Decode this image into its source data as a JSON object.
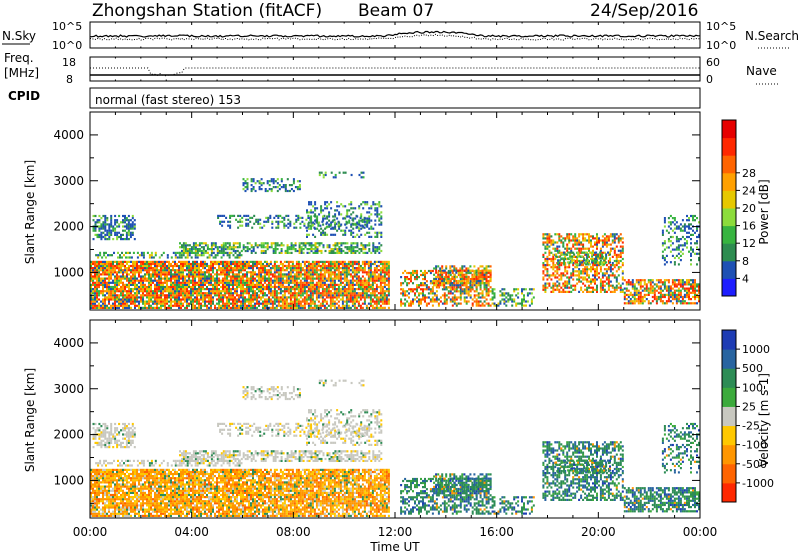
{
  "header": {
    "station": "Zhongshan Station (fitACF)",
    "beam": "Beam 07",
    "date": "24/Sep/2016"
  },
  "top_panels": {
    "noise": {
      "left_label": "N.Sky",
      "right_label": "N.Search",
      "left_ticks": [
        "10^5",
        "10^0"
      ],
      "right_ticks": [
        "10^5",
        "10^0"
      ]
    },
    "freq": {
      "left_label_1": "Freq.",
      "left_label_2": "[MHz]",
      "left_ticks": [
        "18",
        "8"
      ],
      "right_label": "Nave",
      "right_ticks": [
        "60",
        "0"
      ]
    },
    "cpid": {
      "label": "CPID",
      "text": "normal (fast stereo) 153"
    }
  },
  "chart_data": [
    {
      "type": "heatmap",
      "panel": "power",
      "ylabel": "Slant Range [km]",
      "ylim": [
        180,
        4500
      ],
      "yticks": [
        1000,
        2000,
        3000,
        4000
      ],
      "xlim_hours": [
        0,
        24
      ],
      "colorbar": {
        "label": "Power [dB]",
        "ticks": [
          "4",
          "8",
          "12",
          "16",
          "20",
          "24",
          "28"
        ],
        "range": [
          0,
          32
        ],
        "colors": [
          "#1e1eff",
          "#1e50b4",
          "#2d8c50",
          "#37b440",
          "#8cdc3c",
          "#e6c800",
          "#ffa000",
          "#ff6400",
          "#ff2800",
          "#e60000"
        ]
      }
    },
    {
      "type": "heatmap",
      "panel": "velocity",
      "ylabel": "Slant Range [km]",
      "ylim": [
        180,
        4500
      ],
      "yticks": [
        1000,
        2000,
        3000,
        4000
      ],
      "xlim_hours": [
        0,
        24
      ],
      "colorbar": {
        "label": "Velocity [m s-1]",
        "ticks": [
          "1000",
          "500",
          "100",
          "25",
          "-25",
          "-100",
          "-500",
          "-1000"
        ],
        "colors": [
          "#1e3cb4",
          "#2864a0",
          "#2d8c55",
          "#3caa3c",
          "#c8c8c0",
          "#ffc800",
          "#ff9600",
          "#ff6400",
          "#ff2800"
        ]
      }
    }
  ],
  "x_axis": {
    "label": "Time UT",
    "ticks": [
      "00:00",
      "04:00",
      "08:00",
      "12:00",
      "16:00",
      "20:00",
      "00:00"
    ]
  }
}
